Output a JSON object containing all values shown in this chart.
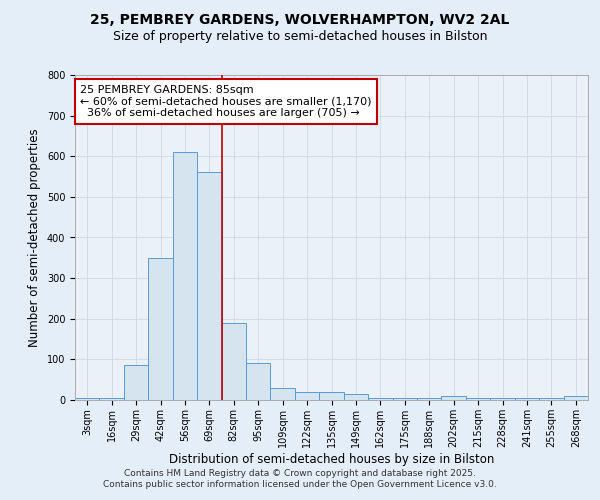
{
  "title_line1": "25, PEMBREY GARDENS, WOLVERHAMPTON, WV2 2AL",
  "title_line2": "Size of property relative to semi-detached houses in Bilston",
  "xlabel": "Distribution of semi-detached houses by size in Bilston",
  "ylabel": "Number of semi-detached properties",
  "footer_line1": "Contains HM Land Registry data © Crown copyright and database right 2025.",
  "footer_line2": "Contains public sector information licensed under the Open Government Licence v3.0.",
  "annotation_line1": "25 PEMBREY GARDENS: 85sqm",
  "annotation_line2": "← 60% of semi-detached houses are smaller (1,170)",
  "annotation_line3": "  36% of semi-detached houses are larger (705) →",
  "bar_labels": [
    "3sqm",
    "16sqm",
    "29sqm",
    "42sqm",
    "56sqm",
    "69sqm",
    "82sqm",
    "95sqm",
    "109sqm",
    "122sqm",
    "135sqm",
    "149sqm",
    "162sqm",
    "175sqm",
    "188sqm",
    "202sqm",
    "215sqm",
    "228sqm",
    "241sqm",
    "255sqm",
    "268sqm"
  ],
  "bar_values": [
    5,
    5,
    85,
    350,
    610,
    560,
    190,
    90,
    30,
    20,
    20,
    15,
    5,
    5,
    5,
    10,
    5,
    5,
    5,
    5,
    10
  ],
  "bar_edge_color": "#5b9bd5",
  "bar_face_color": "#d6e4f0",
  "vline_color": "#c00000",
  "vline_x_index": 6,
  "ylim": [
    0,
    800
  ],
  "yticks": [
    0,
    100,
    200,
    300,
    400,
    500,
    600,
    700,
    800
  ],
  "grid_color": "#d0d8e0",
  "background_color": "#e4eef8",
  "plot_bg_color": "#eaf1f8",
  "title_fontsize": 10,
  "subtitle_fontsize": 9,
  "annotation_fontsize": 8,
  "axis_label_fontsize": 8.5,
  "tick_fontsize": 7,
  "footer_fontsize": 6.5
}
